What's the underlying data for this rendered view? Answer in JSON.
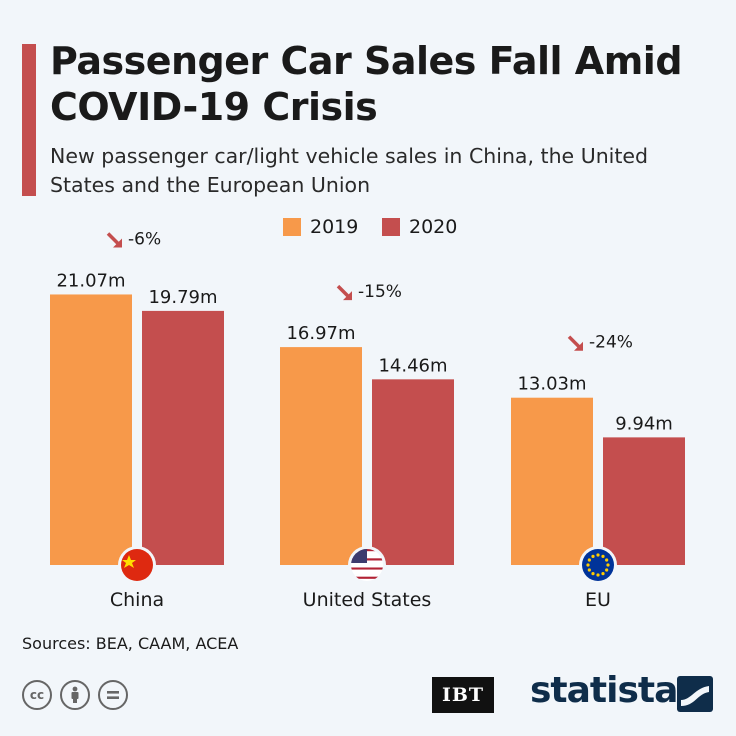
{
  "title": "Passenger Car Sales Fall Amid COVID-19 Crisis",
  "subtitle": "New passenger car/light vehicle sales in China, the United States and the European Union",
  "legend": {
    "label_2019": "2019",
    "label_2020": "2020"
  },
  "sources": "Sources: BEA, CAAM, ACEA",
  "brand": {
    "publisher": "IBT",
    "statista": "statista"
  },
  "colors": {
    "s2019": "#f7994a",
    "s2020": "#c44e4e",
    "title_bar": "#c44e4e",
    "arrow": "#c44e4e"
  },
  "icons": [
    "cc-icon",
    "attribution-icon",
    "no-derivatives-icon",
    "china-flag-icon",
    "us-flag-icon",
    "eu-flag-icon",
    "statista-logo-icon"
  ],
  "chart_data": {
    "type": "bar",
    "categories": [
      "China",
      "United States",
      "EU"
    ],
    "series": [
      {
        "name": "2019",
        "values": [
          21.07,
          16.97,
          13.03
        ],
        "labels": [
          "21.07m",
          "16.97m",
          "13.03m"
        ]
      },
      {
        "name": "2020",
        "values": [
          19.79,
          14.46,
          9.94
        ],
        "labels": [
          "19.79m",
          "14.46m",
          "9.94m"
        ]
      }
    ],
    "changes": [
      "-6%",
      "-15%",
      "-24%"
    ],
    "ylim": [
      0,
      22
    ],
    "grid": false,
    "legend_position": "top-center"
  }
}
